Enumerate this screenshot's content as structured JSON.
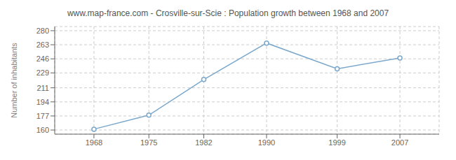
{
  "chart_data": {
    "type": "line",
    "title": "www.map-france.com - Crosville-sur-Scie : Population growth between 1968 and 2007",
    "ylabel": "Number of inhabitants",
    "x": [
      1968,
      1975,
      1982,
      1990,
      1999,
      2007
    ],
    "values": [
      161,
      178,
      221,
      265,
      234,
      247
    ],
    "color": "#7aa8cc",
    "marker": "circle",
    "xlim": [
      1963,
      2012
    ],
    "ylim": [
      155,
      285
    ],
    "xticks": [
      1968,
      1975,
      1982,
      1990,
      1999,
      2007
    ],
    "yticks": [
      160,
      177,
      194,
      211,
      229,
      246,
      263,
      280
    ],
    "grid": true
  }
}
